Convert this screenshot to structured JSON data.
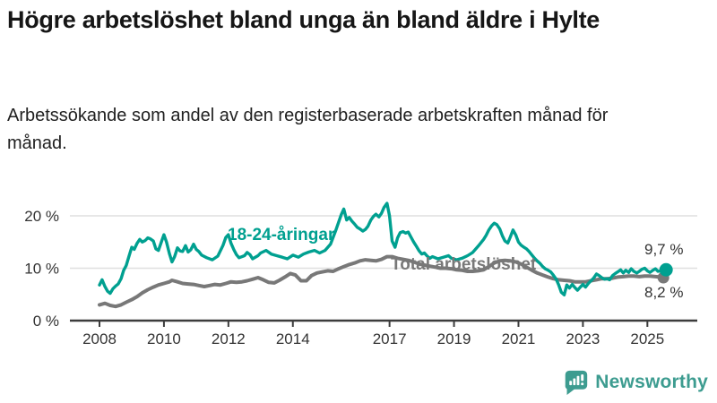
{
  "header": {
    "title": "Högre arbetslöshet bland unga än bland äldre i Hylte",
    "subtitle": "Arbetssökande som andel av den registerbaserade arbetskraften månad för månad."
  },
  "branding": {
    "logo_text": "Newsworthy",
    "logo_icon": "speech-bubble-with-bar-chart-and-exclamation",
    "logo_color": "#3d9c90"
  },
  "colors": {
    "background": "#ffffff",
    "title_text": "#161616",
    "axis_text": "#333333",
    "axis_line": "#3c3c3c",
    "gridline": "#dfdfdf",
    "young_series": "#00a090",
    "total_series": "#787878"
  },
  "chart_data": {
    "type": "line",
    "title": "Högre arbetslöshet bland unga än bland äldre i Hylte",
    "subtitle": "Arbetssökande som andel av den registerbaserade arbetskraften månad för månad.",
    "unit": "%",
    "grid": "horizontal",
    "legend_position": "inline-labels",
    "x_axis": {
      "range": [
        2008,
        2025.7
      ],
      "ticks": [
        2008,
        2010,
        2012,
        2014,
        2017,
        2019,
        2021,
        2023,
        2025
      ]
    },
    "y_axis": {
      "range": [
        0,
        23
      ],
      "tick_values": [
        0,
        10,
        20
      ],
      "tick_labels": [
        "0 %",
        "10 %",
        "20 %"
      ]
    },
    "series": [
      {
        "name": "18-24-åringar",
        "color": "#00a090",
        "stroke_width": 3.4,
        "dot_radius": 7.5,
        "end_label": "9,7 %",
        "end_value": 9.7,
        "points": [
          [
            2008.0,
            6.8
          ],
          [
            2008.08,
            7.8
          ],
          [
            2008.17,
            6.5
          ],
          [
            2008.25,
            5.6
          ],
          [
            2008.33,
            5.2
          ],
          [
            2008.42,
            6.1
          ],
          [
            2008.5,
            6.6
          ],
          [
            2008.58,
            7.0
          ],
          [
            2008.67,
            8.0
          ],
          [
            2008.75,
            9.6
          ],
          [
            2008.83,
            10.5
          ],
          [
            2008.92,
            12.4
          ],
          [
            2009.0,
            14.0
          ],
          [
            2009.08,
            13.6
          ],
          [
            2009.17,
            14.8
          ],
          [
            2009.25,
            15.5
          ],
          [
            2009.33,
            15.0
          ],
          [
            2009.42,
            15.3
          ],
          [
            2009.5,
            15.8
          ],
          [
            2009.58,
            15.6
          ],
          [
            2009.67,
            15.2
          ],
          [
            2009.75,
            13.7
          ],
          [
            2009.83,
            13.4
          ],
          [
            2009.92,
            15.0
          ],
          [
            2010.0,
            16.4
          ],
          [
            2010.08,
            15.0
          ],
          [
            2010.17,
            12.8
          ],
          [
            2010.25,
            11.2
          ],
          [
            2010.33,
            12.2
          ],
          [
            2010.42,
            13.9
          ],
          [
            2010.5,
            13.3
          ],
          [
            2010.58,
            13.2
          ],
          [
            2010.67,
            14.3
          ],
          [
            2010.75,
            13.1
          ],
          [
            2010.83,
            13.5
          ],
          [
            2010.92,
            14.6
          ],
          [
            2011.0,
            13.6
          ],
          [
            2011.08,
            13.2
          ],
          [
            2011.17,
            12.5
          ],
          [
            2011.33,
            12.0
          ],
          [
            2011.5,
            11.6
          ],
          [
            2011.67,
            12.3
          ],
          [
            2011.83,
            14.3
          ],
          [
            2011.92,
            15.9
          ],
          [
            2012.0,
            16.4
          ],
          [
            2012.08,
            14.8
          ],
          [
            2012.17,
            13.5
          ],
          [
            2012.25,
            12.6
          ],
          [
            2012.33,
            12.0
          ],
          [
            2012.5,
            12.4
          ],
          [
            2012.58,
            13.0
          ],
          [
            2012.67,
            12.6
          ],
          [
            2012.75,
            11.8
          ],
          [
            2012.92,
            12.4
          ],
          [
            2013.0,
            12.9
          ],
          [
            2013.17,
            13.4
          ],
          [
            2013.33,
            12.7
          ],
          [
            2013.5,
            12.4
          ],
          [
            2013.67,
            12.1
          ],
          [
            2013.83,
            11.8
          ],
          [
            2014.0,
            12.5
          ],
          [
            2014.17,
            12.1
          ],
          [
            2014.33,
            12.7
          ],
          [
            2014.5,
            13.1
          ],
          [
            2014.67,
            13.4
          ],
          [
            2014.83,
            12.9
          ],
          [
            2015.0,
            13.4
          ],
          [
            2015.17,
            14.6
          ],
          [
            2015.33,
            17.2
          ],
          [
            2015.5,
            20.2
          ],
          [
            2015.58,
            21.3
          ],
          [
            2015.67,
            19.2
          ],
          [
            2015.75,
            19.7
          ],
          [
            2015.83,
            19.0
          ],
          [
            2015.92,
            18.4
          ],
          [
            2016.0,
            17.8
          ],
          [
            2016.08,
            17.5
          ],
          [
            2016.17,
            17.1
          ],
          [
            2016.25,
            17.4
          ],
          [
            2016.33,
            18.0
          ],
          [
            2016.42,
            19.2
          ],
          [
            2016.5,
            19.9
          ],
          [
            2016.58,
            20.3
          ],
          [
            2016.67,
            19.8
          ],
          [
            2016.75,
            20.5
          ],
          [
            2016.83,
            21.6
          ],
          [
            2016.92,
            22.4
          ],
          [
            2017.0,
            20.0
          ],
          [
            2017.08,
            15.2
          ],
          [
            2017.17,
            14.0
          ],
          [
            2017.25,
            15.8
          ],
          [
            2017.33,
            16.8
          ],
          [
            2017.42,
            17.0
          ],
          [
            2017.5,
            16.7
          ],
          [
            2017.58,
            16.9
          ],
          [
            2017.67,
            15.9
          ],
          [
            2017.75,
            15.0
          ],
          [
            2017.83,
            14.2
          ],
          [
            2017.92,
            13.3
          ],
          [
            2018.0,
            12.7
          ],
          [
            2018.08,
            12.9
          ],
          [
            2018.17,
            12.3
          ],
          [
            2018.25,
            11.9
          ],
          [
            2018.33,
            12.2
          ],
          [
            2018.5,
            11.8
          ],
          [
            2018.67,
            12.1
          ],
          [
            2018.83,
            12.4
          ],
          [
            2018.92,
            11.9
          ],
          [
            2019.08,
            11.6
          ],
          [
            2019.25,
            11.9
          ],
          [
            2019.42,
            12.4
          ],
          [
            2019.58,
            13.0
          ],
          [
            2019.75,
            14.2
          ],
          [
            2019.92,
            15.5
          ],
          [
            2020.0,
            16.3
          ],
          [
            2020.08,
            17.3
          ],
          [
            2020.17,
            18.1
          ],
          [
            2020.25,
            18.6
          ],
          [
            2020.33,
            18.3
          ],
          [
            2020.42,
            17.5
          ],
          [
            2020.5,
            16.2
          ],
          [
            2020.58,
            15.2
          ],
          [
            2020.67,
            14.8
          ],
          [
            2020.75,
            16.0
          ],
          [
            2020.83,
            17.3
          ],
          [
            2020.92,
            16.3
          ],
          [
            2021.0,
            15.0
          ],
          [
            2021.08,
            14.4
          ],
          [
            2021.17,
            14.0
          ],
          [
            2021.25,
            13.7
          ],
          [
            2021.33,
            13.2
          ],
          [
            2021.42,
            12.5
          ],
          [
            2021.5,
            11.9
          ],
          [
            2021.58,
            11.4
          ],
          [
            2021.67,
            10.9
          ],
          [
            2021.75,
            10.3
          ],
          [
            2021.83,
            9.9
          ],
          [
            2021.92,
            9.6
          ],
          [
            2022.0,
            9.3
          ],
          [
            2022.08,
            8.7
          ],
          [
            2022.17,
            7.9
          ],
          [
            2022.25,
            6.8
          ],
          [
            2022.33,
            5.4
          ],
          [
            2022.42,
            4.9
          ],
          [
            2022.5,
            6.8
          ],
          [
            2022.58,
            6.2
          ],
          [
            2022.67,
            6.9
          ],
          [
            2022.75,
            6.3
          ],
          [
            2022.83,
            5.8
          ],
          [
            2022.92,
            6.4
          ],
          [
            2023.0,
            6.9
          ],
          [
            2023.08,
            6.4
          ],
          [
            2023.17,
            7.1
          ],
          [
            2023.25,
            7.6
          ],
          [
            2023.33,
            8.1
          ],
          [
            2023.42,
            8.9
          ],
          [
            2023.5,
            8.6
          ],
          [
            2023.58,
            8.2
          ],
          [
            2023.67,
            7.9
          ],
          [
            2023.75,
            8.0
          ],
          [
            2023.83,
            7.8
          ],
          [
            2023.92,
            8.6
          ],
          [
            2024.0,
            9.0
          ],
          [
            2024.08,
            9.3
          ],
          [
            2024.17,
            9.7
          ],
          [
            2024.25,
            9.1
          ],
          [
            2024.33,
            9.6
          ],
          [
            2024.42,
            9.2
          ],
          [
            2024.5,
            9.9
          ],
          [
            2024.58,
            9.4
          ],
          [
            2024.67,
            9.1
          ],
          [
            2024.75,
            9.4
          ],
          [
            2024.83,
            9.8
          ],
          [
            2024.92,
            10.0
          ],
          [
            2025.0,
            9.5
          ],
          [
            2025.08,
            9.2
          ],
          [
            2025.17,
            9.6
          ],
          [
            2025.25,
            9.9
          ],
          [
            2025.33,
            9.4
          ],
          [
            2025.58,
            9.7
          ]
        ]
      },
      {
        "name": "Total arbetslöshet",
        "color": "#787878",
        "stroke_width": 4,
        "dot_radius": 6.5,
        "end_label": "8,2 %",
        "end_value": 8.2,
        "points": [
          [
            2008.0,
            3.0
          ],
          [
            2008.17,
            3.3
          ],
          [
            2008.33,
            2.9
          ],
          [
            2008.5,
            2.7
          ],
          [
            2008.67,
            3.0
          ],
          [
            2008.83,
            3.5
          ],
          [
            2009.0,
            4.0
          ],
          [
            2009.17,
            4.6
          ],
          [
            2009.33,
            5.3
          ],
          [
            2009.5,
            5.9
          ],
          [
            2009.67,
            6.4
          ],
          [
            2009.83,
            6.8
          ],
          [
            2010.0,
            7.1
          ],
          [
            2010.17,
            7.4
          ],
          [
            2010.25,
            7.7
          ],
          [
            2010.42,
            7.4
          ],
          [
            2010.58,
            7.1
          ],
          [
            2010.75,
            7.0
          ],
          [
            2010.92,
            6.9
          ],
          [
            2011.08,
            6.7
          ],
          [
            2011.25,
            6.5
          ],
          [
            2011.42,
            6.7
          ],
          [
            2011.58,
            6.9
          ],
          [
            2011.75,
            6.8
          ],
          [
            2011.92,
            7.1
          ],
          [
            2012.08,
            7.4
          ],
          [
            2012.25,
            7.3
          ],
          [
            2012.42,
            7.4
          ],
          [
            2012.58,
            7.6
          ],
          [
            2012.75,
            7.9
          ],
          [
            2012.92,
            8.2
          ],
          [
            2013.08,
            7.8
          ],
          [
            2013.25,
            7.3
          ],
          [
            2013.42,
            7.2
          ],
          [
            2013.58,
            7.7
          ],
          [
            2013.75,
            8.3
          ],
          [
            2013.92,
            9.0
          ],
          [
            2014.08,
            8.7
          ],
          [
            2014.25,
            7.6
          ],
          [
            2014.42,
            7.6
          ],
          [
            2014.58,
            8.6
          ],
          [
            2014.75,
            9.1
          ],
          [
            2014.92,
            9.3
          ],
          [
            2015.08,
            9.5
          ],
          [
            2015.25,
            9.4
          ],
          [
            2015.42,
            9.9
          ],
          [
            2015.58,
            10.3
          ],
          [
            2015.75,
            10.7
          ],
          [
            2015.92,
            11.0
          ],
          [
            2016.08,
            11.4
          ],
          [
            2016.25,
            11.6
          ],
          [
            2016.42,
            11.5
          ],
          [
            2016.58,
            11.4
          ],
          [
            2016.75,
            11.7
          ],
          [
            2016.92,
            12.2
          ],
          [
            2017.08,
            12.2
          ],
          [
            2017.25,
            11.9
          ],
          [
            2017.42,
            11.7
          ],
          [
            2017.58,
            11.5
          ],
          [
            2017.75,
            11.2
          ],
          [
            2017.92,
            10.8
          ],
          [
            2018.08,
            10.6
          ],
          [
            2018.25,
            10.4
          ],
          [
            2018.42,
            10.2
          ],
          [
            2018.58,
            10.0
          ],
          [
            2018.75,
            10.0
          ],
          [
            2018.92,
            9.9
          ],
          [
            2019.08,
            9.7
          ],
          [
            2019.25,
            9.6
          ],
          [
            2019.42,
            9.4
          ],
          [
            2019.58,
            9.4
          ],
          [
            2019.75,
            9.5
          ],
          [
            2019.92,
            9.7
          ],
          [
            2020.08,
            10.3
          ],
          [
            2020.25,
            11.0
          ],
          [
            2020.42,
            11.4
          ],
          [
            2020.58,
            11.5
          ],
          [
            2020.75,
            11.4
          ],
          [
            2020.92,
            11.2
          ],
          [
            2021.08,
            10.8
          ],
          [
            2021.25,
            10.2
          ],
          [
            2021.42,
            9.6
          ],
          [
            2021.58,
            9.1
          ],
          [
            2021.75,
            8.7
          ],
          [
            2021.92,
            8.3
          ],
          [
            2022.08,
            8.0
          ],
          [
            2022.25,
            7.8
          ],
          [
            2022.42,
            7.7
          ],
          [
            2022.58,
            7.6
          ],
          [
            2022.75,
            7.4
          ],
          [
            2022.92,
            7.4
          ],
          [
            2023.08,
            7.4
          ],
          [
            2023.25,
            7.6
          ],
          [
            2023.42,
            7.8
          ],
          [
            2023.58,
            8.0
          ],
          [
            2023.75,
            8.0
          ],
          [
            2023.92,
            8.1
          ],
          [
            2024.08,
            8.3
          ],
          [
            2024.25,
            8.4
          ],
          [
            2024.42,
            8.5
          ],
          [
            2024.58,
            8.5
          ],
          [
            2024.75,
            8.4
          ],
          [
            2024.92,
            8.5
          ],
          [
            2025.08,
            8.5
          ],
          [
            2025.25,
            8.4
          ],
          [
            2025.58,
            8.2
          ]
        ]
      }
    ]
  }
}
